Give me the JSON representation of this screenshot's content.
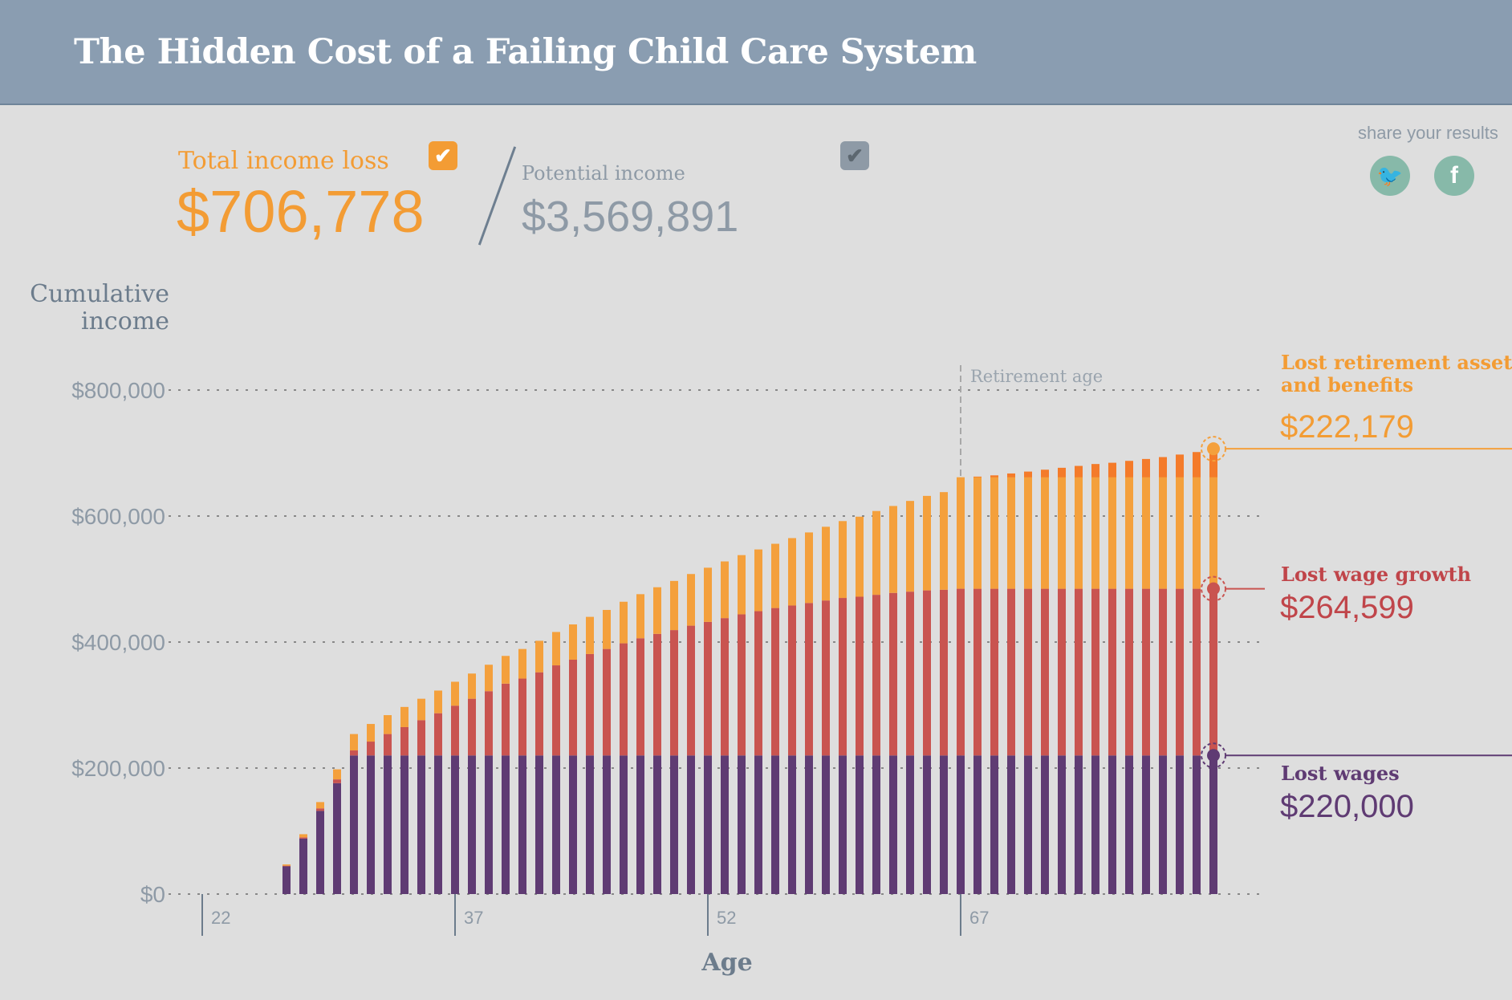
{
  "header": {
    "title": "The Hidden Cost of a Failing Child Care System"
  },
  "summary": {
    "total_label": "Total income loss",
    "total_value": "$706,778",
    "potential_label": "Potential income",
    "potential_value": "$3,569,891"
  },
  "share": {
    "label": "share your results",
    "twitter_icon": "twitter-icon",
    "facebook_icon": "facebook-icon"
  },
  "colors": {
    "wages": "#5f3b73",
    "growth": "#c95450",
    "retirement": "#f4a03c",
    "retirement_post": "#f47b2a",
    "orange_text": "#f39c34",
    "red_text": "#c0454a",
    "purple_text": "#5f3b73",
    "grey": "#8e9aa6"
  },
  "chart_data": {
    "type": "bar",
    "stacked": true,
    "title": "",
    "ylabel_lines": [
      "Cumulative",
      "income"
    ],
    "xlabel": "Age",
    "ylim": [
      0,
      800000
    ],
    "y_ticks": [
      {
        "value": 0,
        "label": "$0"
      },
      {
        "value": 200000,
        "label": "$200,000"
      },
      {
        "value": 400000,
        "label": "$400,000"
      },
      {
        "value": 600000,
        "label": "$600,000"
      },
      {
        "value": 800000,
        "label": "$800,000"
      }
    ],
    "x_ticks": [
      {
        "value": 22,
        "label": "22"
      },
      {
        "value": 37,
        "label": "37"
      },
      {
        "value": 52,
        "label": "52"
      },
      {
        "value": 67,
        "label": "67"
      }
    ],
    "x_range": [
      22,
      82
    ],
    "retirement_age": 67,
    "retirement_label": "Retirement age",
    "grid": "horizontal dotted",
    "x": [
      27,
      28,
      29,
      30,
      31,
      32,
      33,
      34,
      35,
      36,
      37,
      38,
      39,
      40,
      41,
      42,
      43,
      44,
      45,
      46,
      47,
      48,
      49,
      50,
      51,
      52,
      53,
      54,
      55,
      56,
      57,
      58,
      59,
      60,
      61,
      62,
      63,
      64,
      65,
      66,
      67,
      68,
      69,
      70,
      71,
      72,
      73,
      74,
      75,
      76,
      77,
      78,
      79,
      80,
      81,
      82
    ],
    "series": [
      {
        "name": "Lost wages",
        "values": [
          44000,
          88000,
          132000,
          176000,
          220000,
          220000,
          220000,
          220000,
          220000,
          220000,
          220000,
          220000,
          220000,
          220000,
          220000,
          220000,
          220000,
          220000,
          220000,
          220000,
          220000,
          220000,
          220000,
          220000,
          220000,
          220000,
          220000,
          220000,
          220000,
          220000,
          220000,
          220000,
          220000,
          220000,
          220000,
          220000,
          220000,
          220000,
          220000,
          220000,
          220000,
          220000,
          220000,
          220000,
          220000,
          220000,
          220000,
          220000,
          220000,
          220000,
          220000,
          220000,
          220000,
          220000,
          220000,
          220000
        ]
      },
      {
        "name": "Lost wage growth",
        "values": [
          1000,
          2000,
          4000,
          6000,
          8000,
          22000,
          34000,
          45000,
          56000,
          67000,
          79000,
          90000,
          102000,
          114000,
          122000,
          132000,
          143000,
          152000,
          161000,
          169000,
          178000,
          186000,
          193000,
          199000,
          206000,
          212000,
          218000,
          224000,
          229000,
          234000,
          238000,
          242000,
          246000,
          250000,
          252000,
          255000,
          258000,
          260000,
          262000,
          263000,
          264599,
          264599,
          264599,
          264599,
          264599,
          264599,
          264599,
          264599,
          264599,
          264599,
          264599,
          264599,
          264599,
          264599,
          264599,
          264599
        ]
      },
      {
        "name": "Lost retirement assets and benefits",
        "values": [
          2000,
          5000,
          10000,
          16000,
          26000,
          28000,
          30000,
          32000,
          34000,
          36000,
          38000,
          40000,
          42000,
          44000,
          47000,
          50000,
          53000,
          56000,
          59000,
          62000,
          66000,
          70000,
          74000,
          78000,
          82000,
          86000,
          90000,
          94000,
          98000,
          102000,
          107000,
          112000,
          117000,
          122000,
          127000,
          133000,
          138000,
          144000,
          150000,
          155000,
          177000,
          178000,
          180000,
          183000,
          186000,
          189000,
          192000,
          195000,
          198000,
          200000,
          203000,
          206000,
          209000,
          213000,
          217000,
          222179
        ]
      }
    ],
    "legend": [
      {
        "series": "Lost retirement assets and benefits",
        "title_lines": [
          "Lost retirement assets",
          "and benefits"
        ],
        "value": "$222,179"
      },
      {
        "series": "Lost wage growth",
        "title_lines": [
          "Lost wage growth"
        ],
        "value": "$264,599"
      },
      {
        "series": "Lost wages",
        "title_lines": [
          "Lost wages"
        ],
        "value": "$220,000"
      }
    ]
  }
}
